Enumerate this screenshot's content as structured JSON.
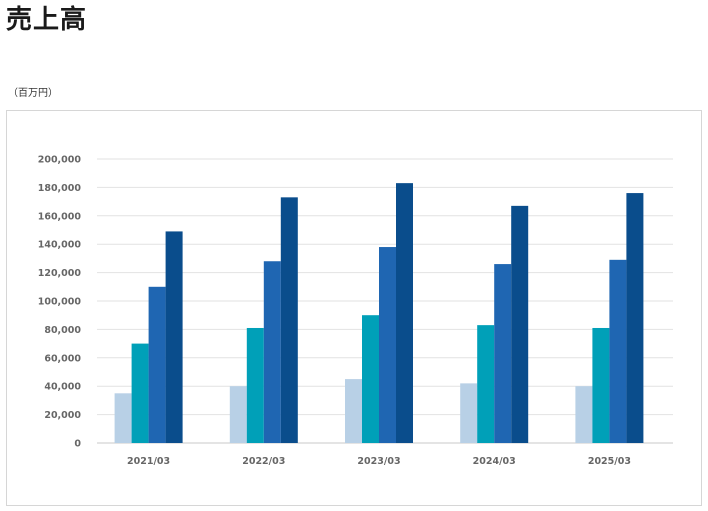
{
  "page": {
    "title": "売上高",
    "unit_note": "（百万円）"
  },
  "chart_data": {
    "type": "bar",
    "title": "",
    "xlabel": "",
    "ylabel": "",
    "ylim": [
      0,
      200000
    ],
    "ytick_step": 20000,
    "grid": true,
    "legend": "none",
    "categories": [
      "2021/03",
      "2022/03",
      "2023/03",
      "2024/03",
      "2025/03"
    ],
    "series": [
      {
        "color": "#b8d0e6",
        "values": [
          35000,
          40000,
          45000,
          42000,
          40000
        ]
      },
      {
        "color": "#00a0b8",
        "values": [
          70000,
          81000,
          90000,
          83000,
          81000
        ]
      },
      {
        "color": "#1f66b2",
        "values": [
          110000,
          128000,
          138000,
          126000,
          129000
        ]
      },
      {
        "color": "#0a4d8c",
        "values": [
          149000,
          173000,
          183000,
          167000,
          176000
        ]
      }
    ]
  }
}
